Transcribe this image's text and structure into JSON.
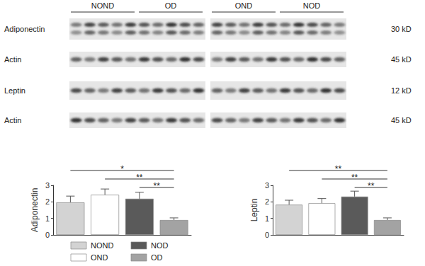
{
  "blot": {
    "groups": [
      "NOND",
      "OD",
      "OND",
      "NOD"
    ],
    "rows": [
      {
        "label": "Adiponectin",
        "size": "30 kD"
      },
      {
        "label": "Actin",
        "size": "45 kD"
      },
      {
        "label": "Leptin",
        "size": "12 kD"
      },
      {
        "label": "Actin",
        "size": "45 kD"
      }
    ]
  },
  "chart_data": [
    {
      "type": "bar",
      "y_label": "Adiponectin",
      "categories": [
        "NOND",
        "OND",
        "NOD",
        "OD"
      ],
      "values": [
        1.97,
        2.43,
        2.19,
        0.9
      ],
      "errors": [
        0.38,
        0.35,
        0.39,
        0.13
      ],
      "colors": [
        "#d3d3d3",
        "#ffffff",
        "#5a5a5a",
        "#a3a3a3"
      ],
      "ylim": [
        0,
        3
      ],
      "yticks": [
        0,
        1,
        2,
        3
      ],
      "tick_labels": "y",
      "legend": "bottom",
      "annotations": [
        {
          "from": "NOND",
          "to": "OD",
          "label": "*"
        },
        {
          "from": "OND",
          "to": "OD",
          "label": "**"
        },
        {
          "from": "NOD",
          "to": "OD",
          "label": "**"
        }
      ]
    },
    {
      "type": "bar",
      "y_label": "Leptin",
      "categories": [
        "NOND",
        "OND",
        "NOD",
        "OD"
      ],
      "values": [
        1.83,
        1.92,
        2.32,
        0.9
      ],
      "errors": [
        0.27,
        0.28,
        0.33,
        0.13
      ],
      "colors": [
        "#d3d3d3",
        "#ffffff",
        "#5a5a5a",
        "#a3a3a3"
      ],
      "ylim": [
        0,
        3
      ],
      "yticks": [
        0,
        1,
        2,
        3
      ],
      "tick_labels": "y",
      "annotations": [
        {
          "from": "NOND",
          "to": "OD",
          "label": "**"
        },
        {
          "from": "OND",
          "to": "OD",
          "label": "**"
        },
        {
          "from": "NOD",
          "to": "OD",
          "label": "**"
        }
      ]
    }
  ]
}
